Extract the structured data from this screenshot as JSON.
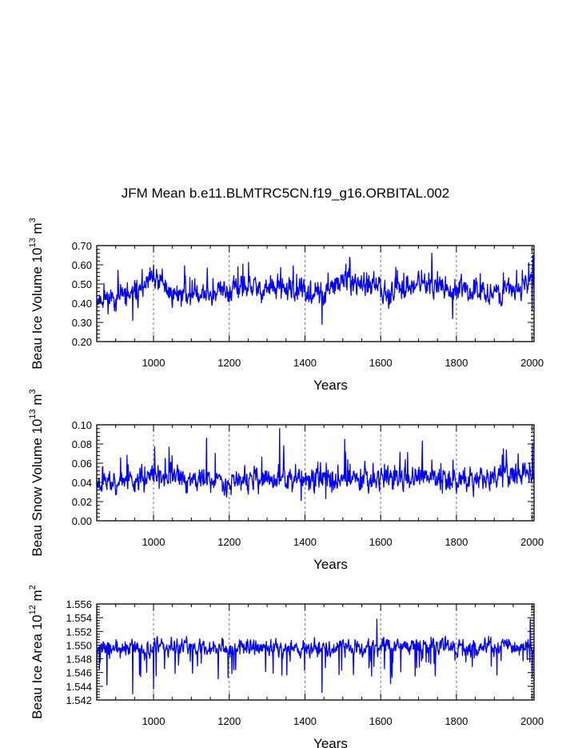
{
  "title": "JFM Mean b.e11.BLMTRC5CN.f19_g16.ORBITAL.002",
  "chart_data": [
    {
      "type": "line",
      "name": "ice-volume",
      "ylabel": "Beau Ice Volume 10",
      "ylabel_exp": "13",
      "ylabel_unit": " m",
      "ylabel_unit_exp": "3",
      "xlabel": "Years",
      "xlim": [
        850,
        2005
      ],
      "ylim": [
        0.2,
        0.7
      ],
      "yticks": [
        0.2,
        0.3,
        0.4,
        0.5,
        0.6,
        0.7
      ],
      "ytick_labels": [
        "0.20",
        "0.30",
        "0.40",
        "0.50",
        "0.60",
        "0.70"
      ],
      "xticks": [
        1000,
        1200,
        1400,
        1600,
        1800,
        2000
      ],
      "xtick_labels": [
        "1000",
        "1200",
        "1400",
        "1600",
        "1800",
        "2000"
      ],
      "grid_x": [
        1000,
        1200,
        1400,
        1600,
        1800,
        2000
      ],
      "series_color": "#0000ff",
      "mean": 0.46,
      "noise": 0.055,
      "seed": 11,
      "anchors": [
        [
          850,
          0.42
        ],
        [
          950,
          0.44
        ],
        [
          1000,
          0.52
        ],
        [
          1050,
          0.45
        ],
        [
          1150,
          0.45
        ],
        [
          1250,
          0.48
        ],
        [
          1350,
          0.47
        ],
        [
          1450,
          0.44
        ],
        [
          1500,
          0.52
        ],
        [
          1550,
          0.49
        ],
        [
          1650,
          0.46
        ],
        [
          1700,
          0.51
        ],
        [
          1800,
          0.46
        ],
        [
          1950,
          0.46
        ],
        [
          2005,
          0.53
        ]
      ],
      "extremes": [
        [
          945,
          0.31
        ],
        [
          1000,
          0.6
        ],
        [
          1445,
          0.29
        ],
        [
          1735,
          0.66
        ],
        [
          1790,
          0.32
        ],
        [
          2002,
          0.65
        ],
        [
          2000,
          0.36
        ]
      ]
    },
    {
      "type": "line",
      "name": "snow-volume",
      "ylabel": "Beau Snow Volume 10",
      "ylabel_exp": "13",
      "ylabel_unit": " m",
      "ylabel_unit_exp": "3",
      "xlabel": "Years",
      "xlim": [
        850,
        2005
      ],
      "ylim": [
        0.0,
        0.1
      ],
      "yticks": [
        0.0,
        0.02,
        0.04,
        0.06,
        0.08,
        0.1
      ],
      "ytick_labels": [
        "0.00",
        "0.02",
        "0.04",
        "0.06",
        "0.08",
        "0.10"
      ],
      "xticks": [
        1000,
        1200,
        1400,
        1600,
        1800,
        2000
      ],
      "xtick_labels": [
        "1000",
        "1200",
        "1400",
        "1600",
        "1800",
        "2000"
      ],
      "grid_x": [
        1000,
        1200,
        1400,
        1600,
        1800,
        2000
      ],
      "series_color": "#0000ff",
      "mean": 0.044,
      "noise": 0.011,
      "seed": 23,
      "anchors": [
        [
          850,
          0.04
        ],
        [
          1000,
          0.045
        ],
        [
          1200,
          0.042
        ],
        [
          1400,
          0.043
        ],
        [
          1600,
          0.045
        ],
        [
          1800,
          0.043
        ],
        [
          2005,
          0.05
        ]
      ],
      "extremes": [
        [
          1333,
          0.096
        ],
        [
          1003,
          0.077
        ],
        [
          1140,
          0.086
        ],
        [
          1390,
          0.021
        ],
        [
          1505,
          0.085
        ],
        [
          1710,
          0.083
        ],
        [
          1845,
          0.025
        ],
        [
          2001,
          0.081
        ],
        [
          1455,
          0.023
        ]
      ]
    },
    {
      "type": "line",
      "name": "ice-area",
      "ylabel": "Beau Ice Area 10",
      "ylabel_exp": "12",
      "ylabel_unit": " m",
      "ylabel_unit_exp": "2",
      "xlabel": "Years",
      "xlim": [
        850,
        2005
      ],
      "ylim": [
        1.542,
        1.556
      ],
      "yticks": [
        1.542,
        1.544,
        1.546,
        1.548,
        1.55,
        1.552,
        1.554,
        1.556
      ],
      "ytick_labels": [
        "1.542",
        "1.544",
        "1.546",
        "1.548",
        "1.550",
        "1.552",
        "1.554",
        "1.556"
      ],
      "xticks": [
        1000,
        1200,
        1400,
        1600,
        1800,
        2000
      ],
      "xtick_labels": [
        "1000",
        "1200",
        "1400",
        "1600",
        "1800",
        "2000"
      ],
      "grid_x": [
        1000,
        1200,
        1400,
        1600,
        1800,
        2000
      ],
      "series_color": "#0000ff",
      "mean": 1.5496,
      "noise": 0.0011,
      "seed": 37,
      "skew_down": true,
      "anchors": [
        [
          850,
          1.5495
        ],
        [
          1000,
          1.5495
        ],
        [
          1200,
          1.5497
        ],
        [
          1400,
          1.5496
        ],
        [
          1600,
          1.5498
        ],
        [
          1800,
          1.5497
        ],
        [
          2005,
          1.5497
        ]
      ],
      "extremes": [
        [
          945,
          1.5429
        ],
        [
          1445,
          1.5431
        ],
        [
          877,
          1.5442
        ],
        [
          1000,
          1.5436
        ],
        [
          1630,
          1.5453
        ],
        [
          2000,
          1.5453
        ],
        [
          1590,
          1.5538
        ],
        [
          1995,
          1.5538
        ]
      ]
    }
  ]
}
